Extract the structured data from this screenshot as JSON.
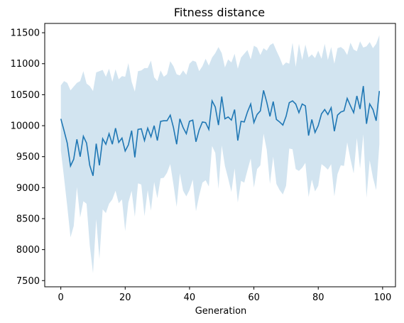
{
  "chart_data": {
    "type": "line",
    "title": "Fitness distance",
    "xlabel": "Generation",
    "ylabel": "",
    "xlim": [
      -5,
      104
    ],
    "ylim": [
      7400,
      11650
    ],
    "xticks": [
      0,
      20,
      40,
      60,
      80,
      100
    ],
    "yticks": [
      7500,
      8000,
      8500,
      9000,
      9500,
      10000,
      10500,
      11000,
      11500
    ],
    "grid": false,
    "colors": {
      "line": "#1f77b4",
      "band": "#1f77b4",
      "band_opacity": 0.2
    },
    "series": [
      {
        "x": [
          0,
          1,
          2,
          3,
          4,
          5,
          6,
          7,
          8,
          9,
          10,
          11,
          12,
          13,
          14,
          15,
          16,
          17,
          18,
          19,
          20,
          21,
          22,
          23,
          24,
          25,
          26,
          27,
          28,
          29,
          30,
          31,
          32,
          33,
          34,
          35,
          36,
          37,
          38,
          39,
          40,
          41,
          42,
          43,
          44,
          45,
          46,
          47,
          48,
          49,
          50,
          51,
          52,
          53,
          54,
          55,
          56,
          57,
          58,
          59,
          60,
          61,
          62,
          63,
          64,
          65,
          66,
          67,
          68,
          69,
          70,
          71,
          72,
          73,
          74,
          75,
          76,
          77,
          78,
          79,
          80,
          81,
          82,
          83,
          84,
          85,
          86,
          87,
          88,
          89,
          90,
          91,
          92,
          93,
          94,
          95,
          96,
          97,
          98,
          99
        ],
        "values": [
          10110,
          9920,
          9720,
          9350,
          9460,
          9780,
          9500,
          9830,
          9720,
          9360,
          9190,
          9710,
          9360,
          9790,
          9700,
          9870,
          9700,
          9960,
          9730,
          9800,
          9590,
          9690,
          9920,
          9490,
          9940,
          9950,
          9760,
          9960,
          9820,
          10000,
          9760,
          10070,
          10080,
          10080,
          10170,
          9970,
          9700,
          10110,
          9970,
          9870,
          10070,
          10090,
          9740,
          9930,
          10060,
          10050,
          9940,
          10400,
          10300,
          10010,
          10470,
          10110,
          10140,
          10090,
          10260,
          9760,
          10070,
          10060,
          10220,
          10350,
          10050,
          10180,
          10240,
          10570,
          10380,
          10150,
          10390,
          10100,
          10060,
          10010,
          10150,
          10370,
          10400,
          10350,
          10210,
          10350,
          10320,
          9840,
          10100,
          9890,
          10000,
          10190,
          10260,
          10180,
          10290,
          9910,
          10170,
          10220,
          10240,
          10440,
          10320,
          10210,
          10480,
          10270,
          10640,
          10030,
          10350,
          10260,
          10080,
          10560
        ],
        "upper": [
          10650,
          10720,
          10690,
          10570,
          10630,
          10690,
          10720,
          10880,
          10680,
          10640,
          10560,
          10860,
          10880,
          10900,
          10790,
          10920,
          10710,
          10910,
          10750,
          10800,
          10790,
          11010,
          10710,
          10550,
          10880,
          10890,
          10930,
          10930,
          11050,
          10780,
          10720,
          10890,
          10790,
          10830,
          11040,
          10960,
          10830,
          10810,
          10890,
          10820,
          11000,
          11050,
          11030,
          10880,
          10960,
          11080,
          10970,
          11100,
          11170,
          11270,
          11170,
          10940,
          11070,
          11020,
          11160,
          10920,
          11100,
          11160,
          11220,
          11070,
          11290,
          11260,
          11140,
          11250,
          11210,
          11300,
          11330,
          11210,
          11100,
          10970,
          11020,
          11000,
          11340,
          10950,
          11320,
          11060,
          11310,
          11100,
          11150,
          11090,
          11210,
          11080,
          11320,
          11060,
          11270,
          11000,
          11250,
          11270,
          11230,
          11140,
          11340,
          11230,
          11200,
          11360,
          11260,
          11280,
          11350,
          11250,
          11320,
          11460
        ],
        "lower": [
          9600,
          9160,
          8700,
          8200,
          8380,
          9010,
          8520,
          8780,
          8740,
          8070,
          7620,
          8490,
          7850,
          8650,
          8590,
          8740,
          8810,
          8950,
          8750,
          8810,
          8300,
          8760,
          8950,
          8530,
          9070,
          9050,
          8540,
          8960,
          8630,
          9090,
          8830,
          9150,
          9160,
          9240,
          9380,
          9050,
          8690,
          9230,
          8950,
          8860,
          8960,
          9130,
          8620,
          8870,
          9080,
          9120,
          9020,
          9670,
          9560,
          8980,
          9680,
          9350,
          9150,
          8930,
          9310,
          8760,
          9110,
          9080,
          9280,
          9470,
          9000,
          9300,
          9360,
          9870,
          9610,
          9060,
          9500,
          9060,
          8960,
          8890,
          9030,
          9630,
          9620,
          9300,
          9270,
          9320,
          9400,
          8850,
          9130,
          8940,
          9030,
          9380,
          9340,
          9290,
          9380,
          8860,
          9220,
          9360,
          9350,
          9730,
          9460,
          9230,
          9800,
          9310,
          9860,
          8840,
          9440,
          9160,
          8960,
          9700
        ]
      }
    ]
  }
}
